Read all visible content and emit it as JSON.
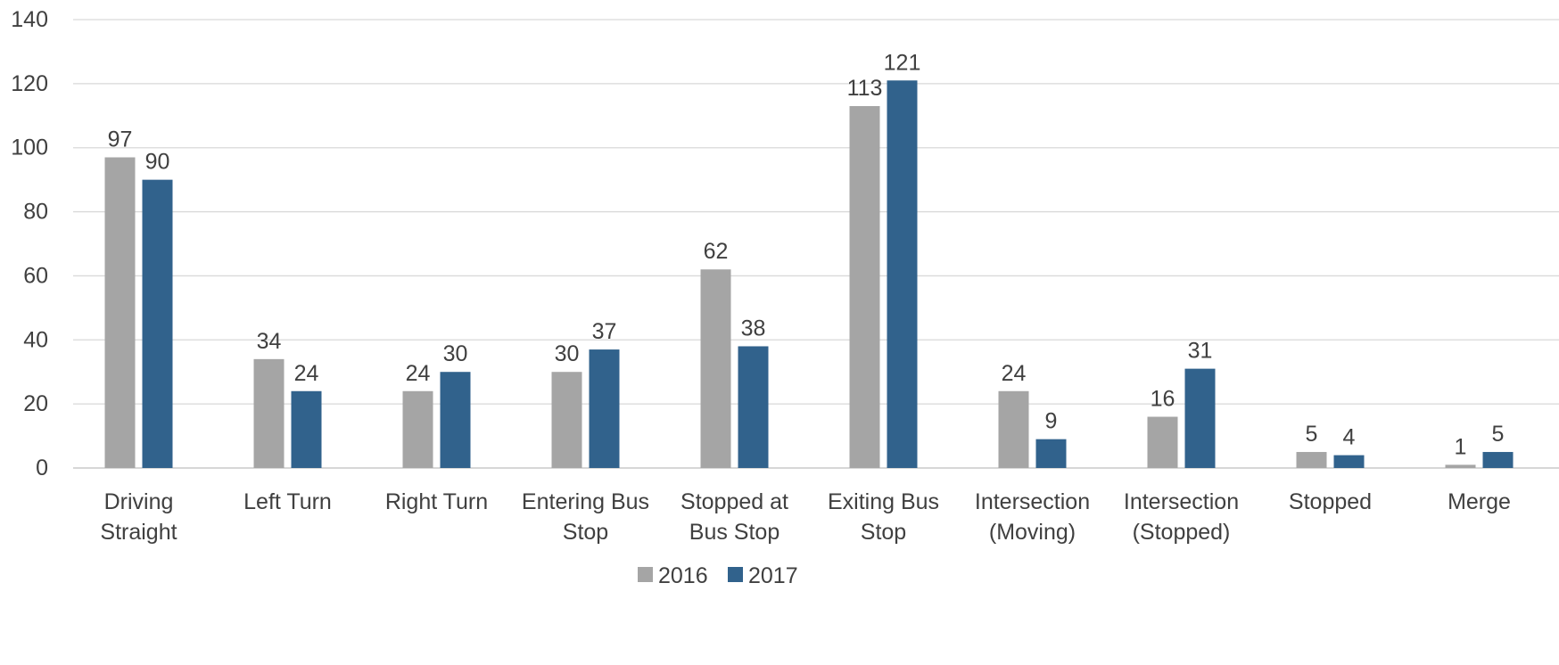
{
  "chart_data": {
    "type": "bar",
    "title": "",
    "xlabel": "",
    "ylabel": "",
    "ylim": [
      0,
      140
    ],
    "yticks": [
      0,
      20,
      40,
      60,
      80,
      100,
      120,
      140
    ],
    "grid": true,
    "legend_position": "bottom",
    "categories": [
      [
        "Driving",
        "Straight"
      ],
      [
        "Left Turn"
      ],
      [
        "Right Turn"
      ],
      [
        "Entering Bus",
        "Stop"
      ],
      [
        "Stopped at",
        "Bus Stop"
      ],
      [
        "Exiting Bus",
        "Stop"
      ],
      [
        "Intersection",
        "(Moving)"
      ],
      [
        "Intersection",
        "(Stopped)"
      ],
      [
        "Stopped"
      ],
      [
        "Merge"
      ]
    ],
    "series": [
      {
        "name": "2016",
        "color": "#a5a5a5",
        "values": [
          97,
          34,
          24,
          30,
          62,
          113,
          24,
          16,
          5,
          1
        ]
      },
      {
        "name": "2017",
        "color": "#31628c",
        "values": [
          90,
          24,
          30,
          37,
          38,
          121,
          9,
          31,
          4,
          5
        ]
      }
    ],
    "data_labels": true
  }
}
